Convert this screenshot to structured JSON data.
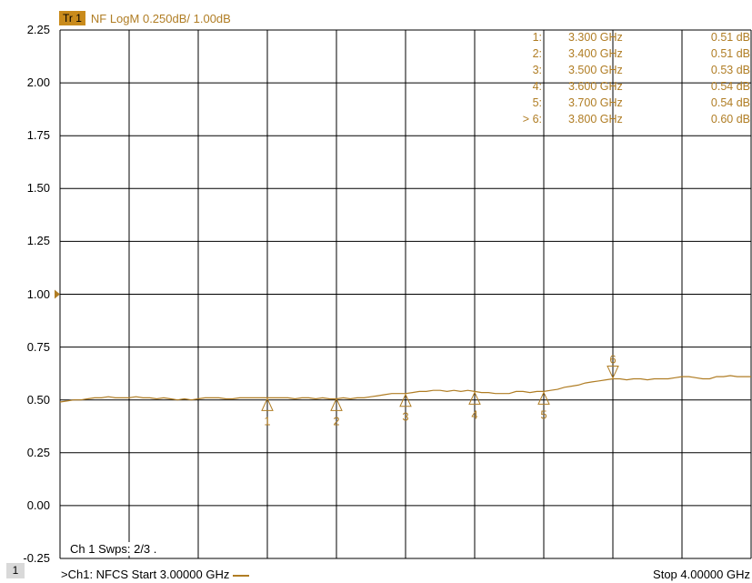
{
  "trace_header": {
    "badge": "Tr 1",
    "format": "NF LogM 0.250dB/  1.00dB"
  },
  "sweep_info": "Ch 1  Swps: 2/3 .",
  "footer": {
    "channel_number": "1",
    "start": ">Ch1: NFCS  Start  3.00000 GHz",
    "stop": "Stop  4.00000 GHz"
  },
  "colors": {
    "trace": "#b07d24",
    "grid": "#000000",
    "badge": "#c98b1c"
  },
  "marker_table": [
    {
      "index": "1:",
      "freq": "3.300 GHz",
      "value": "0.51 dB"
    },
    {
      "index": "2:",
      "freq": "3.400 GHz",
      "value": "0.51 dB"
    },
    {
      "index": "3:",
      "freq": "3.500 GHz",
      "value": "0.53 dB"
    },
    {
      "index": "4:",
      "freq": "3.600 GHz",
      "value": "0.54 dB"
    },
    {
      "index": "5:",
      "freq": "3.700 GHz",
      "value": "0.54 dB"
    },
    {
      "index": "> 6:",
      "freq": "3.800 GHz",
      "value": "0.60 dB"
    }
  ],
  "chart_data": {
    "type": "line",
    "title": "",
    "xlabel": "",
    "ylabel": "",
    "xlim": [
      3.0,
      4.0
    ],
    "ylim": [
      -0.25,
      2.25
    ],
    "yticks": [
      "2.25",
      "2.00",
      "1.75",
      "1.50",
      "1.25",
      "1.00",
      "0.75",
      "0.50",
      "0.25",
      "0.00",
      "-0.25"
    ],
    "reference_level": 1.0,
    "grid": true,
    "x_unit": "GHz",
    "series": [
      {
        "x": [
          3.0,
          3.01,
          3.02,
          3.03,
          3.04,
          3.05,
          3.06,
          3.07,
          3.08,
          3.09,
          3.1,
          3.11,
          3.12,
          3.13,
          3.14,
          3.15,
          3.16,
          3.17,
          3.18,
          3.19,
          3.2,
          3.21,
          3.22,
          3.23,
          3.24,
          3.25,
          3.26,
          3.27,
          3.28,
          3.29,
          3.3,
          3.31,
          3.32,
          3.33,
          3.34,
          3.35,
          3.36,
          3.37,
          3.38,
          3.39,
          3.4,
          3.41,
          3.42,
          3.43,
          3.44,
          3.45,
          3.46,
          3.47,
          3.48,
          3.49,
          3.5,
          3.51,
          3.52,
          3.53,
          3.54,
          3.55,
          3.56,
          3.57,
          3.58,
          3.59,
          3.6,
          3.61,
          3.62,
          3.63,
          3.64,
          3.65,
          3.66,
          3.67,
          3.68,
          3.69,
          3.7,
          3.71,
          3.72,
          3.73,
          3.74,
          3.75,
          3.76,
          3.77,
          3.78,
          3.79,
          3.8,
          3.81,
          3.82,
          3.83,
          3.84,
          3.85,
          3.86,
          3.87,
          3.88,
          3.89,
          3.9,
          3.91,
          3.92,
          3.93,
          3.94,
          3.95,
          3.96,
          3.97,
          3.98,
          3.99,
          4.0
        ],
        "y": [
          0.49,
          0.495,
          0.5,
          0.5,
          0.505,
          0.51,
          0.51,
          0.515,
          0.51,
          0.51,
          0.51,
          0.515,
          0.51,
          0.51,
          0.505,
          0.51,
          0.505,
          0.5,
          0.505,
          0.5,
          0.505,
          0.51,
          0.51,
          0.51,
          0.505,
          0.505,
          0.51,
          0.51,
          0.51,
          0.51,
          0.51,
          0.51,
          0.51,
          0.51,
          0.505,
          0.51,
          0.51,
          0.505,
          0.51,
          0.505,
          0.505,
          0.51,
          0.505,
          0.51,
          0.51,
          0.515,
          0.52,
          0.525,
          0.53,
          0.53,
          0.53,
          0.535,
          0.54,
          0.54,
          0.545,
          0.545,
          0.54,
          0.545,
          0.54,
          0.545,
          0.54,
          0.535,
          0.535,
          0.53,
          0.53,
          0.53,
          0.54,
          0.54,
          0.535,
          0.54,
          0.54,
          0.545,
          0.55,
          0.56,
          0.565,
          0.57,
          0.58,
          0.585,
          0.59,
          0.595,
          0.6,
          0.6,
          0.595,
          0.6,
          0.6,
          0.595,
          0.6,
          0.6,
          0.6,
          0.605,
          0.61,
          0.61,
          0.605,
          0.6,
          0.6,
          0.61,
          0.61,
          0.615,
          0.61,
          0.61,
          0.61
        ]
      }
    ],
    "markers": [
      {
        "label": "1",
        "x": 3.3,
        "y": 0.51,
        "active": false
      },
      {
        "label": "2",
        "x": 3.4,
        "y": 0.51,
        "active": false
      },
      {
        "label": "3",
        "x": 3.5,
        "y": 0.53,
        "active": false
      },
      {
        "label": "4",
        "x": 3.6,
        "y": 0.54,
        "active": false
      },
      {
        "label": "5",
        "x": 3.7,
        "y": 0.54,
        "active": false
      },
      {
        "label": "6",
        "x": 3.8,
        "y": 0.6,
        "active": true
      }
    ]
  }
}
